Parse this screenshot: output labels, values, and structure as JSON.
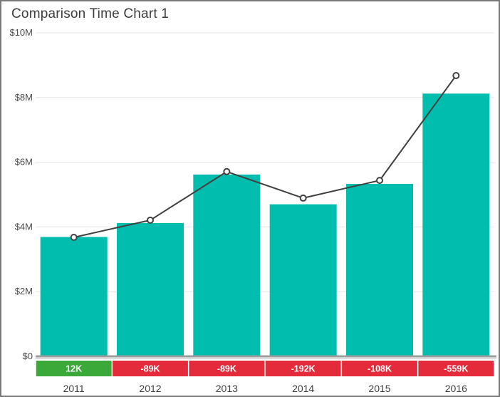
{
  "header": {
    "title": "Comparison Time Chart 1"
  },
  "chart_data": {
    "type": "combo",
    "title": "Comparison Time Chart 1",
    "categories": [
      "2011",
      "2012",
      "2013",
      "2014",
      "2015",
      "2016"
    ],
    "series": [
      {
        "name": "column-series",
        "type": "bar",
        "color": "#00bdae",
        "unit": "USD millions",
        "values": [
          3.69,
          4.12,
          5.62,
          4.7,
          5.33,
          8.12
        ]
      },
      {
        "name": "line-series",
        "type": "line",
        "color": "#404041",
        "marker": "circle-white-fill",
        "unit": "USD millions",
        "values": [
          3.678,
          4.209,
          5.709,
          4.892,
          5.438,
          8.679
        ]
      }
    ],
    "y_axis": {
      "min": 0,
      "max": 10,
      "step": 2,
      "tick_labels": [
        "$0",
        "$2M",
        "$4M",
        "$6M",
        "$8M",
        "$10M"
      ]
    },
    "x_axis": {
      "tick_labels": [
        "2011",
        "2012",
        "2013",
        "2014",
        "2015",
        "2016"
      ]
    },
    "badges": [
      {
        "label": "12K",
        "value_thousands": 12,
        "sentiment": "positive",
        "color": "#3aa93a"
      },
      {
        "label": "-89K",
        "value_thousands": -89,
        "sentiment": "negative",
        "color": "#e42b3c"
      },
      {
        "label": "-89K",
        "value_thousands": -89,
        "sentiment": "negative",
        "color": "#e42b3c"
      },
      {
        "label": "-192K",
        "value_thousands": -192,
        "sentiment": "negative",
        "color": "#e42b3c"
      },
      {
        "label": "-108K",
        "value_thousands": -108,
        "sentiment": "negative",
        "color": "#e42b3c"
      },
      {
        "label": "-559K",
        "value_thousands": -559,
        "sentiment": "negative",
        "color": "#e42b3c"
      }
    ],
    "grid": true,
    "legend_position": "none"
  },
  "colors": {
    "bar": "#00bdae",
    "line": "#404041",
    "badge_positive": "#3aa93a",
    "badge_negative": "#e42b3c",
    "badge_text": "#ffffff",
    "gridline": "#e4e4e4",
    "axis_band_dark": "#9c9c9c",
    "axis_band_light": "#cfcfcf",
    "tick_text": "#4d4d4d",
    "category_text": "#3f3f3f",
    "title_text": "#3d3d3d"
  }
}
